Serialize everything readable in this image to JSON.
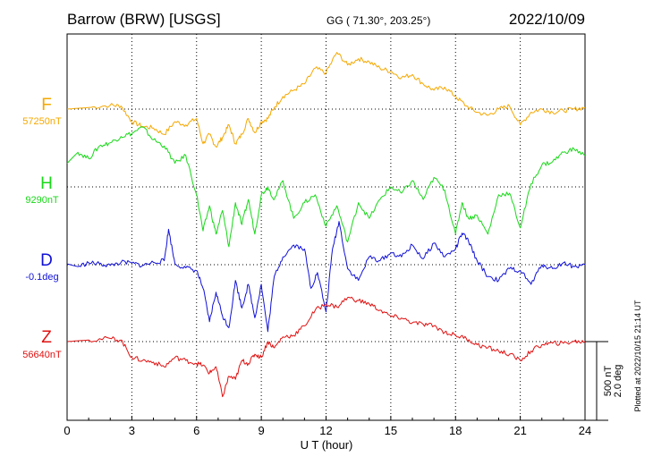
{
  "header": {
    "station": "Barrow (BRW)  [USGS]",
    "coords": "GG ( 71.30°, 203.25°)",
    "date": "2022/10/09"
  },
  "colors": {
    "F": "#f5a800",
    "H": "#18d818",
    "D": "#1010d8",
    "Z": "#e01010",
    "axis": "#000000",
    "grid": "#000000"
  },
  "chart_data": {
    "type": "line",
    "xlabel": "U T (hour)",
    "xlim": [
      0,
      24
    ],
    "xticks": [
      0,
      3,
      6,
      9,
      12,
      15,
      18,
      21,
      24
    ],
    "scale_bar": {
      "line1": "500 nT",
      "line2": "2.0 deg"
    },
    "footnote": "Plotted at 2022/10/15 21:14 UT",
    "series": [
      {
        "name": "F",
        "baseline_label": "57250nT",
        "unit": "nT",
        "x": [
          0,
          1,
          2,
          2.5,
          3,
          3.5,
          4,
          4.5,
          5,
          5.5,
          6,
          6.3,
          6.6,
          6.9,
          7.2,
          7.5,
          7.8,
          8.1,
          8.4,
          8.7,
          9,
          9.3,
          9.6,
          10,
          10.5,
          11,
          11.5,
          12,
          12.5,
          13,
          13.5,
          14,
          14.5,
          15,
          15.5,
          16,
          16.5,
          17,
          17.5,
          18,
          18.5,
          19,
          19.5,
          20,
          20.5,
          21,
          21.5,
          22,
          22.5,
          23,
          23.5,
          24
        ],
        "y": [
          0,
          10,
          25,
          20,
          -80,
          -110,
          -120,
          -160,
          -80,
          -100,
          -60,
          -220,
          -160,
          -240,
          -180,
          -100,
          -220,
          -160,
          -60,
          -150,
          -80,
          -60,
          10,
          80,
          120,
          160,
          260,
          230,
          360,
          280,
          320,
          300,
          260,
          240,
          200,
          220,
          160,
          120,
          140,
          80,
          20,
          -20,
          -40,
          0,
          20,
          -100,
          -20,
          0,
          -20,
          -10,
          0,
          10
        ],
        "baseline_value": 57250
      },
      {
        "name": "H",
        "baseline_label": "9290nT",
        "unit": "nT",
        "x": [
          0,
          0.5,
          1,
          1.5,
          2,
          2.5,
          3,
          3.5,
          4,
          4.5,
          5,
          5.5,
          6,
          6.3,
          6.6,
          6.9,
          7.2,
          7.5,
          7.8,
          8.1,
          8.4,
          8.7,
          9,
          9.3,
          9.6,
          10,
          10.5,
          11,
          11.5,
          12,
          12.5,
          13,
          13.5,
          14,
          14.5,
          15,
          15.5,
          16,
          16.5,
          17,
          17.5,
          18,
          18.3,
          18.6,
          19,
          19.5,
          20,
          20.5,
          21,
          21.5,
          22,
          22.5,
          23,
          23.5,
          24
        ],
        "y": [
          150,
          220,
          180,
          260,
          280,
          320,
          340,
          380,
          300,
          260,
          150,
          200,
          -50,
          -280,
          -120,
          -300,
          -150,
          -380,
          -100,
          -240,
          -80,
          -300,
          -50,
          0,
          -80,
          40,
          -200,
          -100,
          -50,
          -250,
          -120,
          -350,
          -100,
          -200,
          -80,
          0,
          -40,
          40,
          -80,
          60,
          -20,
          -300,
          -100,
          -200,
          -180,
          -300,
          -50,
          -40,
          -260,
          20,
          140,
          160,
          220,
          240,
          200
        ],
        "baseline_value": 9290
      },
      {
        "name": "D",
        "baseline_label": "-0.1deg",
        "unit": "deg",
        "x": [
          0,
          0.5,
          1,
          1.5,
          2,
          2.5,
          3,
          3.5,
          4,
          4.5,
          4.7,
          5,
          5.5,
          6,
          6.3,
          6.6,
          6.9,
          7.2,
          7.5,
          7.8,
          8.1,
          8.4,
          8.7,
          9,
          9.3,
          9.6,
          10,
          10.5,
          11,
          11.3,
          11.6,
          12,
          12.3,
          12.6,
          13,
          13.5,
          14,
          14.5,
          15,
          15.5,
          16,
          16.5,
          17,
          17.5,
          18,
          18.3,
          18.6,
          19,
          19.5,
          20,
          20.5,
          21,
          21.5,
          22,
          22.5,
          23,
          23.5,
          24
        ],
        "y": [
          0.02,
          -0.05,
          0.05,
          0.02,
          -0.02,
          0.06,
          0.04,
          -0.02,
          0.06,
          0.1,
          0.9,
          0.02,
          -0.08,
          -0.15,
          -0.6,
          -1.45,
          -0.7,
          -1.3,
          -1.6,
          -0.4,
          -1.1,
          -0.5,
          -1.35,
          -0.5,
          -1.7,
          -0.3,
          0.2,
          0.5,
          0.4,
          -0.6,
          -0.2,
          -1.2,
          0.4,
          1.1,
          -0.1,
          -0.4,
          0.2,
          0.1,
          0.3,
          0.2,
          0.5,
          0.15,
          0.55,
          0.2,
          0.4,
          0.8,
          0.6,
          0.1,
          -0.3,
          -0.4,
          -0.1,
          -0.15,
          -0.5,
          0,
          -0.1,
          0.05,
          -0.05,
          0
        ],
        "baseline_value": -0.1
      },
      {
        "name": "Z",
        "baseline_label": "56640nT",
        "unit": "nT",
        "x": [
          0,
          1,
          2,
          2.5,
          3,
          3.5,
          4,
          4.5,
          5,
          5.5,
          6,
          6.3,
          6.6,
          6.9,
          7.2,
          7.5,
          7.8,
          8.1,
          8.4,
          8.7,
          9,
          9.3,
          9.6,
          10,
          10.5,
          11,
          11.5,
          12,
          12.5,
          13,
          13.5,
          14,
          14.5,
          15,
          15.5,
          16,
          16.5,
          17,
          17.5,
          18,
          18.5,
          19,
          19.5,
          20,
          20.5,
          21,
          21.5,
          22,
          22.5,
          23,
          23.5,
          24
        ],
        "y": [
          0,
          10,
          20,
          10,
          -100,
          -120,
          -130,
          -160,
          -100,
          -120,
          -140,
          -150,
          -200,
          -160,
          -350,
          -220,
          -240,
          -120,
          -140,
          -80,
          -100,
          0,
          -40,
          30,
          40,
          100,
          200,
          240,
          220,
          280,
          260,
          240,
          200,
          160,
          150,
          120,
          110,
          100,
          60,
          40,
          20,
          -20,
          -40,
          -60,
          -80,
          -120,
          -60,
          -20,
          -10,
          -10,
          0,
          0
        ],
        "baseline_value": 56640
      }
    ]
  }
}
